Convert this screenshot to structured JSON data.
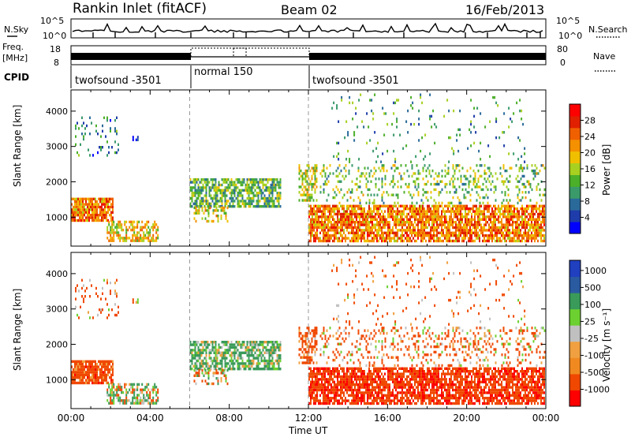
{
  "header": {
    "station": "Rankin Inlet (fitACF)",
    "beam": "Beam 02",
    "date": "16/Feb/2013"
  },
  "nsky": {
    "label": "N.Sky",
    "yticks": [
      "10^5",
      "10^0"
    ]
  },
  "nsearch": {
    "label": "N.Search",
    "yticks": [
      "10^5",
      "10^0"
    ]
  },
  "freq": {
    "label_line1": "Freq.",
    "label_line2": "[MHz]",
    "yticks": [
      "18",
      "8"
    ]
  },
  "nave": {
    "label": "Nave",
    "yticks": [
      "80",
      "0"
    ]
  },
  "cpid": {
    "label": "CPID",
    "segments": [
      {
        "start_hour": 0,
        "end_hour": 6,
        "name": "twofsound -3501"
      },
      {
        "start_hour": 6,
        "end_hour": 12,
        "name": "normal 150"
      },
      {
        "start_hour": 12,
        "end_hour": 24,
        "name": "twofsound -3501"
      }
    ]
  },
  "panels": {
    "power": {
      "ylabel": "Slant Range [km]",
      "yticks": [
        "1000",
        "2000",
        "3000",
        "4000"
      ],
      "cbar_label": "Power [dB]",
      "cbar_ticks": [
        "4",
        "8",
        "12",
        "16",
        "20",
        "24",
        "28"
      ]
    },
    "velocity": {
      "ylabel": "Slant Range [km]",
      "yticks": [
        "1000",
        "2000",
        "3000",
        "4000"
      ],
      "cbar_label": "Velocity [m s⁻¹]",
      "cbar_ticks": [
        "1000",
        "500",
        "100",
        "25",
        "-25",
        "-100",
        "-500",
        "-1000"
      ]
    }
  },
  "xaxis": {
    "label": "Time UT",
    "ticks": [
      "00:00",
      "04:00",
      "08:00",
      "12:00",
      "16:00",
      "20:00",
      "00:00"
    ]
  },
  "chart_data": {
    "type": "heatmap",
    "xlabel": "Time UT",
    "ylabel": "Slant Range [km]",
    "xlim_hours": [
      0,
      24
    ],
    "ylim_km": [
      180,
      4600
    ],
    "power_scale_db": [
      0,
      32
    ],
    "velocity_scale_mps": [
      -1000,
      1000
    ],
    "power_colors": [
      "#0000ff",
      "#1e3caa",
      "#2a6a9a",
      "#3a9a6a",
      "#4caf2a",
      "#a8d020",
      "#f0c000",
      "#f59000",
      "#f06000",
      "#e02000",
      "#ff0000"
    ],
    "velocity_colors": [
      "#ff0000",
      "#f04800",
      "#f08a20",
      "#f0a040",
      "#c0c0c0",
      "#6cd030",
      "#3a9a5a",
      "#2a5aa0",
      "#2040c0"
    ],
    "scatter_regions": [
      {
        "t": [
          0.0,
          2.2
        ],
        "r": [
          850,
          1550
        ],
        "power_db": 24,
        "velocity_mps": -300,
        "density": 0.85
      },
      {
        "t": [
          1.8,
          4.5
        ],
        "r": [
          280,
          900
        ],
        "power_db": 20,
        "velocity_mps": 50,
        "density": 0.6
      },
      {
        "t": [
          0.2,
          2.5
        ],
        "r": [
          2700,
          3850
        ],
        "power_db": 8,
        "velocity_mps": -200,
        "density": 0.12
      },
      {
        "t": [
          3.1,
          3.5
        ],
        "r": [
          3100,
          3300
        ],
        "power_db": 4,
        "velocity_mps": -150,
        "density": 0.6
      },
      {
        "t": [
          6.0,
          10.7
        ],
        "r": [
          1200,
          2100
        ],
        "power_db": 12,
        "velocity_mps": 150,
        "density": 0.7
      },
      {
        "t": [
          6.2,
          8.0
        ],
        "r": [
          800,
          1300
        ],
        "power_db": 18,
        "velocity_mps": -80,
        "density": 0.35
      },
      {
        "t": [
          11.5,
          12.5
        ],
        "r": [
          1400,
          2500
        ],
        "power_db": 16,
        "velocity_mps": -250,
        "density": 0.5
      },
      {
        "t": [
          12.0,
          24.0
        ],
        "r": [
          280,
          1350
        ],
        "power_db": 24,
        "velocity_mps": -400,
        "density": 0.8
      },
      {
        "t": [
          12.5,
          24.0
        ],
        "r": [
          1300,
          2500
        ],
        "power_db": 14,
        "velocity_mps": -150,
        "density": 0.22
      },
      {
        "t": [
          13.0,
          23.0
        ],
        "r": [
          2500,
          4500
        ],
        "power_db": 10,
        "velocity_mps": -200,
        "density": 0.05
      }
    ]
  }
}
